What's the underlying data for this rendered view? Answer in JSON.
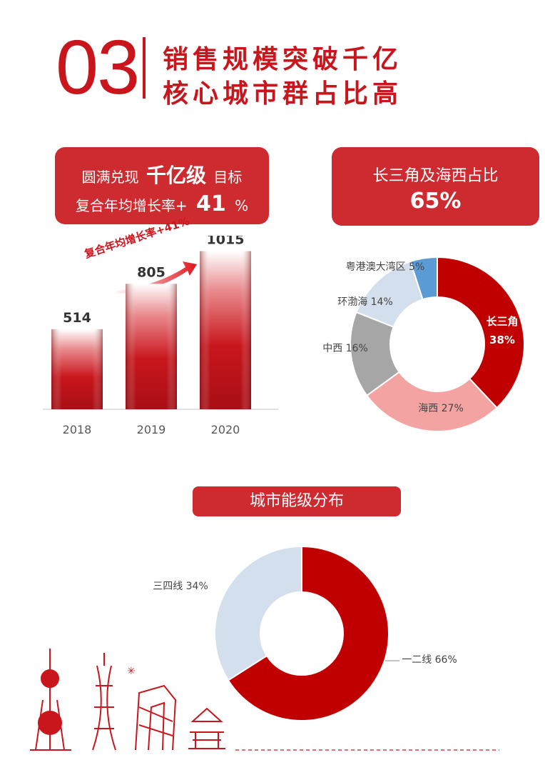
{
  "header": {
    "number": "03",
    "line1": "销售规模突破千亿",
    "line2": "核心城市群占比高"
  },
  "box_left": {
    "l1_pre": "圆满兑现",
    "l1_bold": "千亿级",
    "l1_post": "目标",
    "l2_pre": "复合年均增长率+",
    "l2_bold": "41",
    "l2_post": "%"
  },
  "box_right": {
    "title": "长三角及海西占比",
    "value": "65%"
  },
  "box_bottom": {
    "title": "城市能级分布"
  },
  "colors": {
    "brand_red": "#c9161d",
    "box_red": "#cd2b30",
    "pink": "#f4a3a3",
    "gray": "#a6a6a6",
    "light_blue": "#d3dfed",
    "blue": "#5b9bd5"
  },
  "chart_data": [
    {
      "type": "bar",
      "annotation": "复合年均增长率+41%",
      "categories": [
        "2018",
        "2019",
        "2020"
      ],
      "values": [
        514,
        805,
        1015
      ],
      "data_labels": [
        "514",
        "805",
        "1015"
      ],
      "ylim": [
        0,
        1100
      ],
      "grid": false
    },
    {
      "type": "pie",
      "variant": "donut",
      "labels": [
        "长三角",
        "海西",
        "中西",
        "环渤海",
        "粤港澳大湾区"
      ],
      "values": [
        38,
        27,
        16,
        14,
        5
      ],
      "display": [
        "长三角 38%",
        "海西 27%",
        "中西 16%",
        "环渤海 14%",
        "粤港澳大湾区 5%"
      ],
      "colors": [
        "#c00000",
        "#f4a3a3",
        "#a6a6a6",
        "#d3dfed",
        "#5b9bd5"
      ]
    },
    {
      "type": "pie",
      "variant": "donut",
      "labels": [
        "一二线",
        "三四线"
      ],
      "values": [
        66,
        34
      ],
      "display": [
        "一二线 66%",
        "三四线 34%"
      ],
      "colors": [
        "#c00000",
        "#d3dfed"
      ]
    }
  ]
}
